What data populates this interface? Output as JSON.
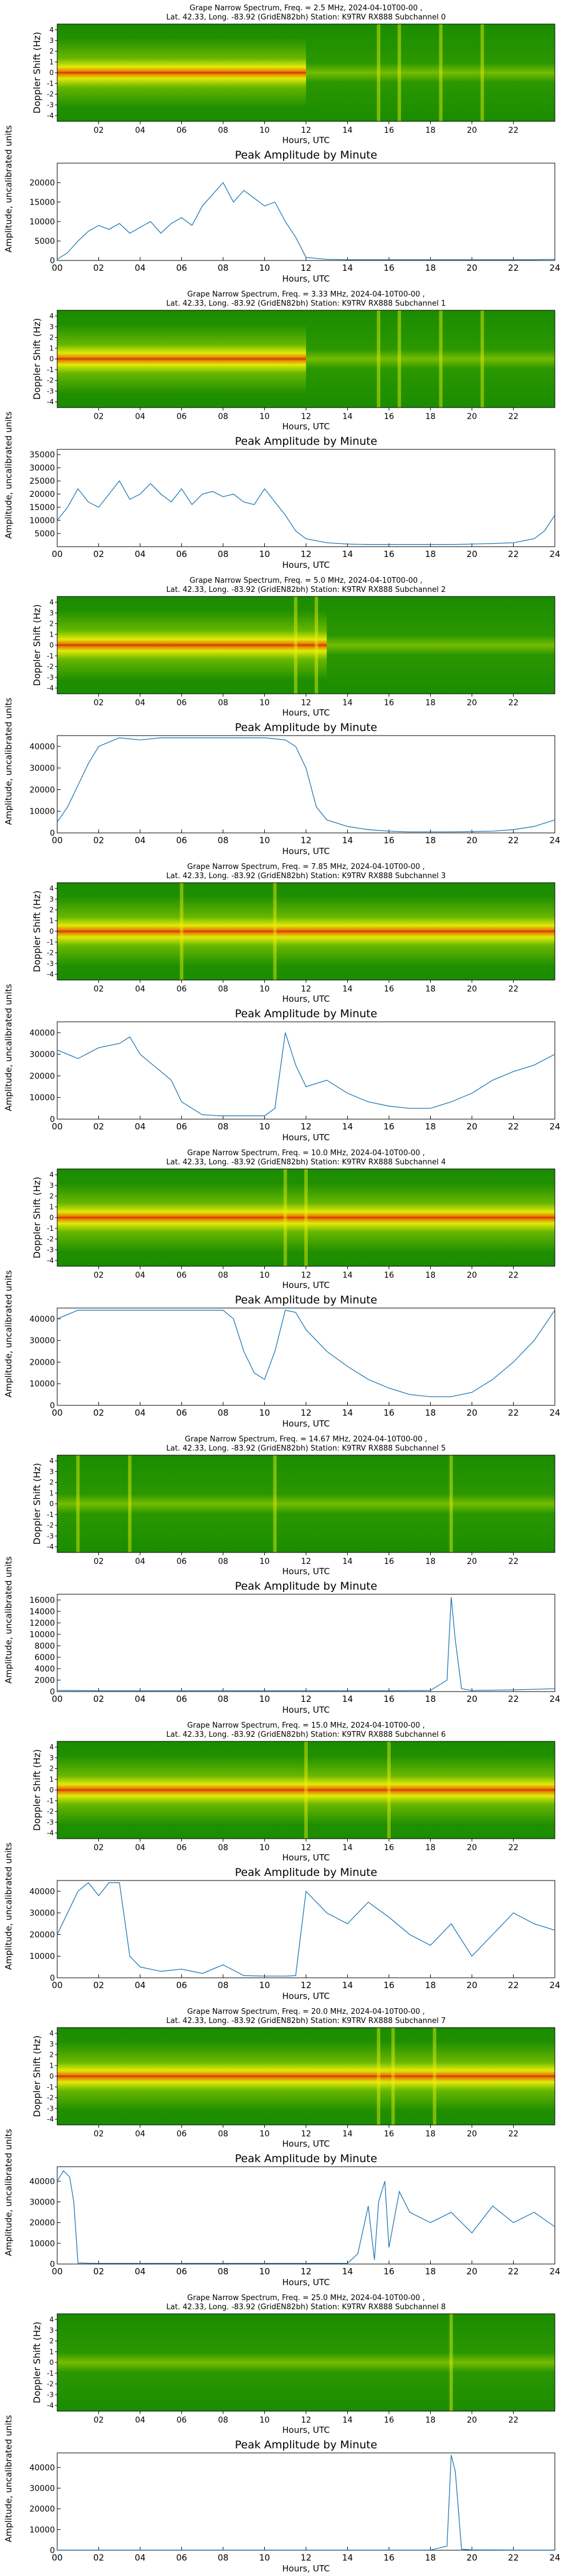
{
  "x_axis": {
    "label": "Hours, UTC",
    "ticks": [
      "00",
      "02",
      "04",
      "06",
      "08",
      "10",
      "12",
      "14",
      "16",
      "18",
      "20",
      "22",
      "24"
    ],
    "spec_ticks": [
      "02",
      "04",
      "06",
      "08",
      "10",
      "12",
      "14",
      "16",
      "18",
      "20",
      "22"
    ]
  },
  "spec_y_label": "Doppler Shift (Hz)",
  "spec_y_ticks": [
    "4",
    "3",
    "2",
    "1",
    "0",
    "-1",
    "-2",
    "-3",
    "-4"
  ],
  "amp_title": "Peak Amplitude by Minute",
  "amp_y_label": "Amplitude, uncalibrated units",
  "colors": {
    "line": "#1f77b4",
    "green": "#1a8c00",
    "yellow": "#f2f20a",
    "red": "#e61e00"
  },
  "channels": [
    {
      "spec_title_1": "Grape Narrow Spectrum, Freq. = 2.5 MHz, 2024-04-10T00-00 ,",
      "spec_title_2": "Lat.  42.33, Long. -83.92 (GridEN82bh) Station: K9TRV RX888 Subchannel 0",
      "spec_signal_end_hour": 12,
      "spec_vertical_bands_hours": [
        15.5,
        16.5,
        18.5,
        20.5
      ],
      "amp_ymax": 25000,
      "amp_yticks": [
        "0",
        "5000",
        "10000",
        "15000",
        "20000"
      ],
      "amp_ytick_values": [
        0,
        5000,
        10000,
        15000,
        20000
      ]
    },
    {
      "spec_title_1": "Grape Narrow Spectrum, Freq. = 3.33 MHz, 2024-04-10T00-00 ,",
      "spec_title_2": "Lat.  42.33, Long. -83.92 (GridEN82bh) Station: K9TRV RX888 Subchannel 1",
      "spec_signal_end_hour": 12,
      "spec_vertical_bands_hours": [
        15.5,
        16.5,
        18.5,
        20.5
      ],
      "amp_ymax": 37000,
      "amp_yticks": [
        "5000",
        "10000",
        "15000",
        "20000",
        "25000",
        "30000",
        "35000"
      ],
      "amp_ytick_values": [
        5000,
        10000,
        15000,
        20000,
        25000,
        30000,
        35000
      ]
    },
    {
      "spec_title_1": "Grape Narrow Spectrum, Freq. = 5.0 MHz, 2024-04-10T00-00 ,",
      "spec_title_2": "Lat.  42.33, Long. -83.92 (GridEN82bh) Station: K9TRV RX888 Subchannel 2",
      "spec_signal_end_hour": 13,
      "spec_vertical_bands_hours": [
        11.5,
        12.5
      ],
      "amp_ymax": 45000,
      "amp_yticks": [
        "0",
        "10000",
        "20000",
        "30000",
        "40000"
      ],
      "amp_ytick_values": [
        0,
        10000,
        20000,
        30000,
        40000
      ]
    },
    {
      "spec_title_1": "Grape Narrow Spectrum, Freq. = 7.85 MHz, 2024-04-10T00-00 ,",
      "spec_title_2": "Lat.  42.33, Long. -83.92 (GridEN82bh) Station: K9TRV RX888 Subchannel 3",
      "spec_signal_end_hour": 24,
      "spec_vertical_bands_hours": [
        6.0,
        10.5
      ],
      "amp_ymax": 45000,
      "amp_yticks": [
        "0",
        "10000",
        "20000",
        "30000",
        "40000"
      ],
      "amp_ytick_values": [
        0,
        10000,
        20000,
        30000,
        40000
      ]
    },
    {
      "spec_title_1": "Grape Narrow Spectrum, Freq. = 10.0 MHz, 2024-04-10T00-00 ,",
      "spec_title_2": "Lat.  42.33, Long. -83.92 (GridEN82bh) Station: K9TRV RX888 Subchannel 4",
      "spec_signal_end_hour": 24,
      "spec_vertical_bands_hours": [
        11.0,
        12.0
      ],
      "amp_ymax": 45000,
      "amp_yticks": [
        "0",
        "10000",
        "20000",
        "30000",
        "40000"
      ],
      "amp_ytick_values": [
        0,
        10000,
        20000,
        30000,
        40000
      ]
    },
    {
      "spec_title_1": "Grape Narrow Spectrum, Freq. = 14.67 MHz, 2024-04-10T00-00 ,",
      "spec_title_2": "Lat.  42.33, Long. -83.92 (GridEN82bh) Station: K9TRV RX888 Subchannel 5",
      "spec_signal_end_hour": 0,
      "spec_vertical_bands_hours": [
        1.0,
        3.5,
        10.5,
        19.0
      ],
      "amp_ymax": 17000,
      "amp_yticks": [
        "0",
        "2000",
        "4000",
        "6000",
        "8000",
        "10000",
        "12000",
        "14000",
        "16000"
      ],
      "amp_ytick_values": [
        0,
        2000,
        4000,
        6000,
        8000,
        10000,
        12000,
        14000,
        16000
      ]
    },
    {
      "spec_title_1": "Grape Narrow Spectrum, Freq. = 15.0 MHz, 2024-04-10T00-00 ,",
      "spec_title_2": "Lat.  42.33, Long. -83.92 (GridEN82bh) Station: K9TRV RX888 Subchannel 6",
      "spec_signal_end_hour": 24,
      "spec_vertical_bands_hours": [
        12.0,
        16.0
      ],
      "amp_ymax": 45000,
      "amp_yticks": [
        "0",
        "10000",
        "20000",
        "30000",
        "40000"
      ],
      "amp_ytick_values": [
        0,
        10000,
        20000,
        30000,
        40000
      ]
    },
    {
      "spec_title_1": "Grape Narrow Spectrum, Freq. = 20.0 MHz, 2024-04-10T00-00 ,",
      "spec_title_2": "Lat.  42.33, Long. -83.92 (GridEN82bh) Station: K9TRV RX888 Subchannel 7",
      "spec_signal_end_hour": 24,
      "spec_vertical_bands_hours": [
        15.5,
        16.2,
        18.2
      ],
      "amp_ymax": 47000,
      "amp_yticks": [
        "0",
        "10000",
        "20000",
        "30000",
        "40000"
      ],
      "amp_ytick_values": [
        0,
        10000,
        20000,
        30000,
        40000
      ]
    },
    {
      "spec_title_1": "Grape Narrow Spectrum, Freq. = 25.0 MHz, 2024-04-10T00-00 ,",
      "spec_title_2": "Lat.  42.33, Long. -83.92 (GridEN82bh) Station: K9TRV RX888 Subchannel 8",
      "spec_signal_end_hour": 0,
      "spec_vertical_bands_hours": [
        19.0
      ],
      "amp_ymax": 47000,
      "amp_yticks": [
        "0",
        "10000",
        "20000",
        "30000",
        "40000"
      ],
      "amp_ytick_values": [
        0,
        10000,
        20000,
        30000,
        40000
      ]
    }
  ],
  "chart_data": [
    {
      "type": "line",
      "title": "Peak Amplitude by Minute",
      "subchannel": 0,
      "xlabel": "Hours, UTC",
      "ylabel": "Amplitude, uncalibrated units",
      "xlim": [
        0,
        24
      ],
      "ylim": [
        0,
        25000
      ],
      "x": [
        0,
        0.5,
        1,
        1.5,
        2,
        2.5,
        3,
        3.5,
        4,
        4.5,
        5,
        5.5,
        6,
        6.5,
        7,
        7.5,
        8,
        8.5,
        9,
        9.5,
        10,
        10.5,
        11,
        11.5,
        12,
        13,
        14,
        15,
        16,
        17,
        18,
        19,
        20,
        21,
        22,
        23,
        24
      ],
      "y": [
        300,
        2000,
        5000,
        7500,
        9000,
        8000,
        9500,
        7000,
        8500,
        10000,
        7000,
        9500,
        11000,
        9000,
        14000,
        17000,
        20000,
        15000,
        18000,
        16000,
        14000,
        15000,
        10000,
        6000,
        800,
        300,
        200,
        200,
        200,
        200,
        200,
        200,
        200,
        200,
        200,
        200,
        300
      ]
    },
    {
      "type": "line",
      "title": "Peak Amplitude by Minute",
      "subchannel": 1,
      "xlabel": "Hours, UTC",
      "ylabel": "Amplitude, uncalibrated units",
      "xlim": [
        0,
        24
      ],
      "ylim": [
        0,
        37000
      ],
      "x": [
        0,
        0.5,
        1,
        1.5,
        2,
        2.5,
        3,
        3.5,
        4,
        4.5,
        5,
        5.5,
        6,
        6.5,
        7,
        7.5,
        8,
        8.5,
        9,
        9.5,
        10,
        10.5,
        11,
        11.5,
        12,
        13,
        14,
        15,
        16,
        17,
        18,
        19,
        20,
        21,
        22,
        23,
        23.5,
        24
      ],
      "y": [
        10000,
        15000,
        22000,
        17000,
        15000,
        20000,
        25000,
        18000,
        20000,
        24000,
        20000,
        17000,
        22000,
        16000,
        20000,
        21000,
        19000,
        20000,
        17000,
        16000,
        22000,
        17000,
        12000,
        6000,
        3000,
        1500,
        1000,
        800,
        800,
        800,
        800,
        800,
        1000,
        1200,
        1500,
        3000,
        6000,
        12000
      ]
    },
    {
      "type": "line",
      "title": "Peak Amplitude by Minute",
      "subchannel": 2,
      "xlabel": "Hours, UTC",
      "ylabel": "Amplitude, uncalibrated units",
      "xlim": [
        0,
        24
      ],
      "ylim": [
        0,
        45000
      ],
      "x": [
        0,
        0.5,
        1,
        1.5,
        2,
        3,
        4,
        5,
        6,
        7,
        8,
        9,
        10,
        11,
        11.5,
        12,
        12.5,
        13,
        14,
        15,
        16,
        17,
        18,
        19,
        20,
        21,
        22,
        23,
        24
      ],
      "y": [
        5000,
        12000,
        22000,
        32000,
        40000,
        44000,
        43000,
        44000,
        44000,
        44000,
        44000,
        44000,
        44000,
        43000,
        40000,
        30000,
        12000,
        6000,
        3000,
        1500,
        800,
        500,
        500,
        500,
        600,
        800,
        1500,
        3000,
        6000
      ]
    },
    {
      "type": "line",
      "title": "Peak Amplitude by Minute",
      "subchannel": 3,
      "xlabel": "Hours, UTC",
      "ylabel": "Amplitude, uncalibrated units",
      "xlim": [
        0,
        24
      ],
      "ylim": [
        0,
        45000
      ],
      "x": [
        0,
        1,
        2,
        3,
        3.5,
        4,
        5,
        5.5,
        6,
        7,
        8,
        9,
        10,
        10.5,
        11,
        11.5,
        12,
        13,
        14,
        15,
        16,
        17,
        18,
        19,
        20,
        21,
        22,
        23,
        24
      ],
      "y": [
        32000,
        28000,
        33000,
        35000,
        38000,
        30000,
        22000,
        18000,
        8000,
        2000,
        1500,
        1500,
        1500,
        5000,
        40000,
        25000,
        15000,
        18000,
        12000,
        8000,
        6000,
        5000,
        5000,
        8000,
        12000,
        18000,
        22000,
        25000,
        30000
      ]
    },
    {
      "type": "line",
      "title": "Peak Amplitude by Minute",
      "subchannel": 4,
      "xlabel": "Hours, UTC",
      "ylabel": "Amplitude, uncalibrated units",
      "xlim": [
        0,
        24
      ],
      "ylim": [
        0,
        45000
      ],
      "x": [
        0,
        1,
        2,
        3,
        4,
        5,
        6,
        7,
        8,
        8.5,
        9,
        9.5,
        10,
        10.5,
        11,
        11.5,
        12,
        13,
        14,
        15,
        16,
        17,
        18,
        19,
        20,
        21,
        22,
        23,
        24
      ],
      "y": [
        40000,
        44000,
        44000,
        44000,
        44000,
        44000,
        44000,
        44000,
        44000,
        40000,
        25000,
        15000,
        12000,
        25000,
        44000,
        43000,
        35000,
        25000,
        18000,
        12000,
        8000,
        5000,
        4000,
        4000,
        6000,
        12000,
        20000,
        30000,
        44000
      ]
    },
    {
      "type": "line",
      "title": "Peak Amplitude by Minute",
      "subchannel": 5,
      "xlabel": "Hours, UTC",
      "ylabel": "Amplitude, uncalibrated units",
      "xlim": [
        0,
        24
      ],
      "ylim": [
        0,
        17000
      ],
      "x": [
        0,
        2,
        4,
        6,
        8,
        10,
        12,
        14,
        16,
        18,
        18.8,
        19,
        19.2,
        19.5,
        20,
        22,
        24
      ],
      "y": [
        200,
        150,
        150,
        150,
        150,
        150,
        150,
        150,
        150,
        200,
        2000,
        16500,
        9000,
        500,
        200,
        300,
        500
      ]
    },
    {
      "type": "line",
      "title": "Peak Amplitude by Minute",
      "subchannel": 6,
      "xlabel": "Hours, UTC",
      "ylabel": "Amplitude, uncalibrated units",
      "xlim": [
        0,
        24
      ],
      "ylim": [
        0,
        45000
      ],
      "x": [
        0,
        0.5,
        1,
        1.5,
        2,
        2.5,
        3,
        3.5,
        4,
        5,
        6,
        7,
        8,
        9,
        10,
        11,
        11.5,
        12,
        12.5,
        13,
        14,
        15,
        16,
        17,
        18,
        19,
        20,
        21,
        22,
        23,
        24
      ],
      "y": [
        20000,
        30000,
        40000,
        44000,
        38000,
        44000,
        44000,
        10000,
        5000,
        3000,
        4000,
        2000,
        6000,
        1000,
        800,
        800,
        1000,
        40000,
        35000,
        30000,
        25000,
        35000,
        28000,
        20000,
        15000,
        25000,
        10000,
        20000,
        30000,
        25000,
        22000
      ]
    },
    {
      "type": "line",
      "title": "Peak Amplitude by Minute",
      "subchannel": 7,
      "xlabel": "Hours, UTC",
      "ylabel": "Amplitude, uncalibrated units",
      "xlim": [
        0,
        24
      ],
      "ylim": [
        0,
        47000
      ],
      "x": [
        0,
        0.3,
        0.6,
        0.8,
        1,
        2,
        4,
        6,
        8,
        10,
        12,
        14,
        14.5,
        15,
        15.3,
        15.5,
        15.8,
        16,
        16.5,
        17,
        18,
        19,
        20,
        21,
        22,
        23,
        24
      ],
      "y": [
        40000,
        45000,
        42000,
        30000,
        500,
        300,
        300,
        300,
        300,
        300,
        300,
        300,
        5000,
        28000,
        2000,
        30000,
        40000,
        8000,
        35000,
        25000,
        20000,
        25000,
        15000,
        28000,
        20000,
        25000,
        18000
      ]
    },
    {
      "type": "line",
      "title": "Peak Amplitude by Minute",
      "subchannel": 8,
      "xlabel": "Hours, UTC",
      "ylabel": "Amplitude, uncalibrated units",
      "xlim": [
        0,
        24
      ],
      "ylim": [
        0,
        47000
      ],
      "x": [
        0,
        2,
        4,
        6,
        8,
        10,
        12,
        14,
        16,
        18,
        18.8,
        19,
        19.2,
        19.5,
        20,
        22,
        24
      ],
      "y": [
        100,
        100,
        100,
        100,
        100,
        100,
        100,
        100,
        100,
        100,
        2000,
        46000,
        38000,
        500,
        200,
        100,
        100
      ]
    }
  ]
}
